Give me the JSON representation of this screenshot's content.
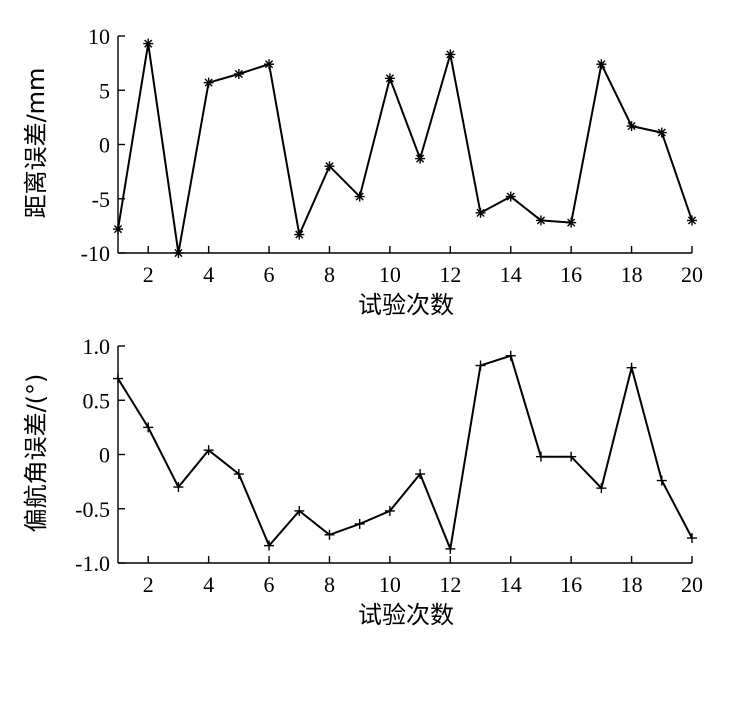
{
  "chart_data": [
    {
      "type": "line",
      "xlabel": "试验次数",
      "ylabel": "距离误差/mm",
      "xlim": [
        1,
        20
      ],
      "ylim": [
        -10,
        10
      ],
      "xticks": [
        2,
        4,
        6,
        8,
        10,
        12,
        14,
        16,
        18,
        20
      ],
      "yticks": [
        10,
        5,
        0,
        -5,
        -10
      ],
      "xtick_labels": [
        "2",
        "4",
        "6",
        "8",
        "10",
        "12",
        "14",
        "16",
        "18",
        "20"
      ],
      "ytick_labels": [
        "10",
        "5",
        "0",
        "-5",
        "-10"
      ],
      "marker": "asterisk",
      "grid": false,
      "x": [
        1,
        2,
        3,
        4,
        5,
        6,
        7,
        8,
        9,
        10,
        11,
        12,
        13,
        14,
        15,
        16,
        17,
        18,
        19,
        20
      ],
      "values": [
        -7.8,
        9.3,
        -10.0,
        5.7,
        6.5,
        7.4,
        -8.3,
        -2.0,
        -4.8,
        6.1,
        -1.3,
        8.3,
        -6.3,
        -4.8,
        -7.0,
        -7.2,
        7.4,
        1.7,
        1.1,
        -7.0
      ]
    },
    {
      "type": "line",
      "xlabel": "试验次数",
      "ylabel": "偏航角误差/(°)",
      "xlim": [
        1,
        20
      ],
      "ylim": [
        -1.0,
        1.0
      ],
      "xticks": [
        2,
        4,
        6,
        8,
        10,
        12,
        14,
        16,
        18,
        20
      ],
      "yticks": [
        1.0,
        0.5,
        0,
        -0.5,
        -1.0
      ],
      "xtick_labels": [
        "2",
        "4",
        "6",
        "8",
        "10",
        "12",
        "14",
        "16",
        "18",
        "20"
      ],
      "ytick_labels": [
        "1.0",
        "0.5",
        "0",
        "-0.5",
        "-1.0"
      ],
      "marker": "plus",
      "grid": false,
      "x": [
        1,
        2,
        3,
        4,
        5,
        6,
        7,
        8,
        9,
        10,
        11,
        12,
        13,
        14,
        15,
        16,
        17,
        18,
        19,
        20
      ],
      "values": [
        0.7,
        0.25,
        -0.3,
        0.04,
        -0.18,
        -0.84,
        -0.52,
        -0.74,
        -0.64,
        -0.52,
        -0.18,
        -0.87,
        0.82,
        0.91,
        -0.02,
        -0.02,
        -0.31,
        0.8,
        -0.24,
        -0.77
      ]
    }
  ]
}
